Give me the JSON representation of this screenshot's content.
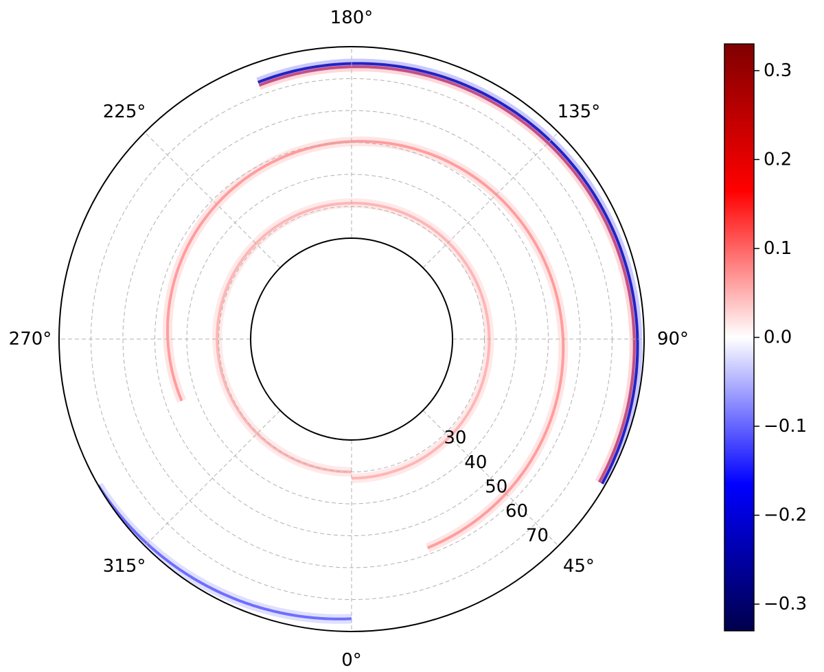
{
  "chart_data": {
    "type": "heatmap",
    "projection": "polar",
    "theta_direction": "counterclockwise",
    "theta_zero": "bottom",
    "theta_ticks": [
      "0°",
      "45°",
      "90°",
      "135°",
      "180°",
      "225°",
      "270°",
      "315°"
    ],
    "theta_tick_values": [
      0,
      45,
      90,
      135,
      180,
      225,
      270,
      315
    ],
    "r_ticks": [
      "30",
      "40",
      "50",
      "60",
      "70"
    ],
    "r_tick_values": [
      30,
      40,
      50,
      60,
      70
    ],
    "r_range": [
      20,
      80
    ],
    "grid": true,
    "colormap": "seismic",
    "colorbar": {
      "ticks": [
        "0.3",
        "0.2",
        "0.1",
        "0.0",
        "−0.1",
        "−0.2",
        "−0.3"
      ],
      "tick_values": [
        0.3,
        0.2,
        0.1,
        0.0,
        -0.1,
        -0.2,
        -0.3
      ],
      "range": [
        -0.33,
        0.33
      ],
      "colors": [
        "#00004c",
        "#0000ff",
        "#ffffff",
        "#ff0000",
        "#800000"
      ],
      "location": "right"
    },
    "features": [
      {
        "desc": "outer spiral arm",
        "r_start": 78,
        "r_end": 73,
        "theta_start": 60,
        "theta_end": 200,
        "value": 0.18
      },
      {
        "desc": "outer spiral arm negative edge",
        "r_start": 79,
        "r_end": 74,
        "theta_start": 60,
        "theta_end": 200,
        "value": -0.25
      },
      {
        "desc": "middle spiral arm",
        "r_start": 58,
        "r_end": 45,
        "theta_start": 20,
        "theta_end": 290,
        "value": 0.12
      },
      {
        "desc": "inner ring",
        "r_start": 32,
        "r_end": 30,
        "theta_start": 0,
        "theta_end": 360,
        "value": 0.1
      },
      {
        "desc": "outer disk edge",
        "r_start": 80,
        "r_end": 76,
        "theta_start": 300,
        "theta_end": 360,
        "value": -0.15
      }
    ]
  }
}
